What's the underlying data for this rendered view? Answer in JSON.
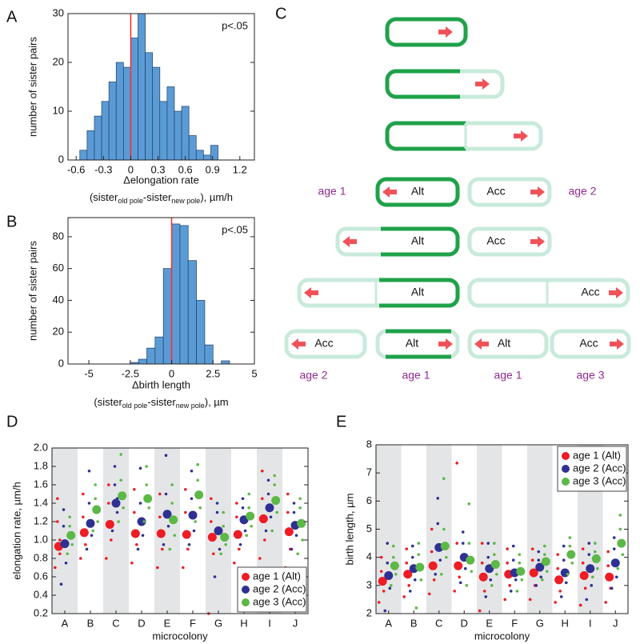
{
  "chart_data": [
    {
      "type": "histogram",
      "panel_label": "A",
      "annotation": "p<.05",
      "y_label": "number of sister pairs",
      "x_label": "Δelongation rate",
      "x_label_2": [
        "(sister",
        "old pole",
        "-sister",
        "new pole",
        "), µm/h"
      ],
      "bins": [
        -0.56,
        -0.48,
        -0.4,
        -0.32,
        -0.24,
        -0.16,
        -0.08,
        0,
        0.08,
        0.16,
        0.24,
        0.32,
        0.4,
        0.48,
        0.56,
        0.64,
        0.72,
        0.8,
        0.88,
        0.96
      ],
      "counts": [
        2,
        6,
        9,
        12,
        16,
        20,
        19,
        25,
        30,
        22,
        19,
        12,
        15,
        10,
        11,
        5,
        2,
        1,
        3
      ],
      "color": "#5b9bd5",
      "vline": 0,
      "vline_color": "#ff2a2a",
      "xlim": [
        -0.69,
        1.36
      ],
      "xticks": [
        -0.6,
        -0.3,
        0,
        0.3,
        0.6,
        0.9,
        1.2
      ],
      "ylim": [
        0,
        30
      ],
      "yticks": [
        0,
        10,
        20,
        30
      ]
    },
    {
      "type": "histogram",
      "panel_label": "B",
      "annotation": "p<.05",
      "y_label": "number of sister pairs",
      "x_label": "Δbirth length",
      "x_label_2": [
        "(sister",
        "old pole",
        "-sister",
        "new pole",
        "), µm"
      ],
      "bins": [
        -2.5,
        -2,
        -1.5,
        -1,
        -0.5,
        0,
        0.5,
        1,
        1.5,
        2,
        2.5,
        3,
        3.5
      ],
      "counts": [
        1,
        3,
        10,
        17,
        60,
        88,
        87,
        65,
        40,
        12,
        0,
        2
      ],
      "color": "#5b9bd5",
      "vline": 0,
      "vline_color": "#ff2a2a",
      "xlim": [
        -6.26,
        5
      ],
      "xticks": [
        -5,
        -2.5,
        0,
        2.5,
        5
      ],
      "ylim": [
        0,
        92
      ],
      "yticks": [
        0,
        20,
        40,
        60,
        80
      ]
    },
    {
      "type": "strip",
      "panel_label": "D",
      "y_label": "elongation rate, µm/h",
      "x_label": "microcolony",
      "categories": [
        "A",
        "B",
        "C",
        "D",
        "E",
        "F",
        "G",
        "H",
        "I",
        "J"
      ],
      "legend": "lower right",
      "shade_alternate": true,
      "ylim": [
        0.2,
        2.0
      ],
      "yticks": [
        0.2,
        0.4,
        0.6,
        0.8,
        {
          "value": 1,
          "label": "1.0"
        },
        1.2,
        1.4,
        1.6,
        1.8,
        {
          "value": 2,
          "label": "2.0"
        }
      ],
      "series": [
        {
          "name": "age 1 (Alt)",
          "color": "#ee1c24",
          "values": [
            0.93,
            1.08,
            1.17,
            1.07,
            1.07,
            1.06,
            1.03,
            1.06,
            1.23,
            1.09
          ],
          "points": [
            [
              0.7,
              0.85,
              1.0,
              1.2,
              1.45
            ],
            [
              0.8,
              0.95,
              1.1,
              1.25,
              1.5
            ],
            [
              0.8,
              1.0,
              1.2,
              1.4,
              1.6
            ],
            [
              0.75,
              0.95,
              1.1,
              1.3,
              1.55
            ],
            [
              0.7,
              0.9,
              1.05,
              1.25,
              1.5
            ],
            [
              0.7,
              0.9,
              1.05,
              1.3,
              1.55
            ],
            [
              0.2,
              0.85,
              1.05,
              1.2,
              1.45
            ],
            [
              0.75,
              0.9,
              1.05,
              1.25,
              1.4
            ],
            [
              0.8,
              1.0,
              1.2,
              1.45,
              1.75
            ],
            [
              0.7,
              0.9,
              1.1,
              1.3,
              1.5
            ]
          ]
        },
        {
          "name": "age 2 (Acc)",
          "color": "#2e3192",
          "values": [
            0.96,
            1.18,
            1.4,
            1.2,
            1.28,
            1.27,
            1.1,
            1.22,
            1.35,
            1.16
          ],
          "points": [
            [
              0.52,
              0.75,
              0.95,
              1.15,
              1.33
            ],
            [
              0.9,
              1.05,
              1.2,
              1.4,
              1.75
            ],
            [
              1.1,
              1.3,
              1.45,
              1.6,
              1.8
            ],
            [
              0.9,
              1.05,
              1.2,
              1.4,
              1.78
            ],
            [
              0.95,
              1.15,
              1.3,
              1.5,
              1.92
            ],
            [
              0.95,
              1.1,
              1.25,
              1.45,
              1.75
            ],
            [
              0.6,
              0.9,
              1.1,
              1.3,
              1.4
            ],
            [
              0.95,
              1.1,
              1.2,
              1.35,
              1.45
            ],
            [
              1.1,
              1.25,
              1.35,
              1.5,
              1.65
            ],
            [
              0.9,
              1.05,
              1.15,
              1.3,
              1.4
            ]
          ]
        },
        {
          "name": "age 3 (Acc)",
          "color": "#5cb847",
          "values": [
            1.05,
            1.33,
            1.48,
            1.45,
            1.22,
            1.49,
            1.03,
            1.26,
            1.43,
            1.18
          ],
          "points": [
            [
              0.85,
              0.95,
              1.05,
              1.15,
              1.25
            ],
            [
              1.1,
              1.2,
              1.35,
              1.45,
              1.6
            ],
            [
              1.2,
              1.35,
              1.5,
              1.65,
              1.93
            ],
            [
              1.2,
              1.35,
              1.45,
              1.6,
              1.8
            ],
            [
              0.9,
              1.05,
              1.2,
              1.4,
              1.6
            ],
            [
              1.2,
              1.35,
              1.5,
              1.65,
              1.82
            ],
            [
              0.85,
              0.95,
              1.05,
              1.15,
              1.3
            ],
            [
              1.05,
              1.15,
              1.25,
              1.35,
              1.5
            ],
            [
              1.1,
              1.3,
              1.45,
              1.6,
              1.7
            ],
            [
              0.85,
              1.0,
              1.2,
              1.35,
              1.45
            ]
          ]
        }
      ]
    },
    {
      "type": "strip",
      "panel_label": "E",
      "y_label": "birth length, µm",
      "x_label": "microcolony",
      "categories": [
        "A",
        "B",
        "C",
        "D",
        "E",
        "F",
        "G",
        "H",
        "I",
        "J"
      ],
      "legend": "upper right",
      "shade_alternate": true,
      "ylim": [
        2,
        8
      ],
      "yticks": [
        2,
        3,
        4,
        5,
        6,
        7,
        8
      ],
      "series": [
        {
          "name": "age 1 (Alt)",
          "color": "#ee1c24",
          "values": [
            3.15,
            3.4,
            3.7,
            3.7,
            3.3,
            3.4,
            3.45,
            3.2,
            3.35,
            3.3
          ],
          "points": [
            [
              2.4,
              2.8,
              3.1,
              3.5,
              4.0
            ],
            [
              2.6,
              3.0,
              3.4,
              3.8,
              4.3
            ],
            [
              2.7,
              3.2,
              3.7,
              4.2,
              5.0
            ],
            [
              2.8,
              3.3,
              3.7,
              4.5,
              7.35
            ],
            [
              2.1,
              2.8,
              3.3,
              3.8,
              4.5
            ],
            [
              2.5,
              3.0,
              3.4,
              3.8,
              4.3
            ],
            [
              2.5,
              3.0,
              3.4,
              3.9,
              4.3
            ],
            [
              2.4,
              2.8,
              3.2,
              3.6,
              4.1
            ],
            [
              2.3,
              2.9,
              3.3,
              3.8,
              4.3
            ],
            [
              2.4,
              2.9,
              3.3,
              3.7,
              4.2
            ]
          ]
        },
        {
          "name": "age 2 (Acc)",
          "color": "#2e3192",
          "values": [
            3.35,
            3.6,
            4.35,
            4.0,
            3.6,
            3.45,
            3.65,
            3.45,
            3.6,
            3.8
          ],
          "points": [
            [
              2.1,
              2.9,
              3.3,
              3.8,
              4.5
            ],
            [
              2.8,
              3.2,
              3.6,
              4.0,
              4.4
            ],
            [
              3.4,
              3.9,
              4.4,
              5.2,
              6.1
            ],
            [
              3.1,
              3.6,
              4.0,
              4.5,
              4.9
            ],
            [
              2.6,
              3.2,
              3.6,
              4.0,
              4.5
            ],
            [
              2.8,
              3.2,
              3.5,
              3.9,
              4.4
            ],
            [
              3.0,
              3.3,
              3.6,
              3.9,
              4.2
            ],
            [
              2.6,
              3.1,
              3.5,
              3.9,
              4.4
            ],
            [
              2.5,
              3.0,
              3.6,
              4.1,
              4.5
            ],
            [
              2.9,
              3.3,
              3.8,
              4.3,
              4.7
            ]
          ]
        },
        {
          "name": "age 3 (Acc)",
          "color": "#5cb847",
          "values": [
            3.7,
            3.65,
            4.4,
            3.9,
            3.75,
            3.5,
            3.85,
            4.1,
            3.95,
            4.5
          ],
          "points": [
            [
              3.0,
              3.4,
              3.7,
              4.0,
              4.4
            ],
            [
              2.2,
              3.2,
              3.7,
              4.1,
              4.5
            ],
            [
              3.4,
              4.0,
              4.4,
              5.0,
              6.8
            ],
            [
              3.0,
              3.5,
              3.9,
              4.5,
              5.9
            ],
            [
              3.0,
              3.4,
              3.7,
              4.1,
              4.5
            ],
            [
              2.8,
              3.2,
              3.5,
              3.8,
              4.1
            ],
            [
              3.2,
              3.5,
              3.8,
              4.1,
              4.4
            ],
            [
              3.4,
              3.8,
              4.1,
              4.4,
              4.7
            ],
            [
              3.3,
              3.6,
              3.9,
              4.2,
              4.5
            ],
            [
              3.6,
              4.1,
              4.5,
              5.0,
              5.5
            ]
          ]
        }
      ]
    }
  ],
  "diagram": {
    "panel_label": "C",
    "rows": [
      {
        "cells": [
          "Alt",
          "Acc"
        ],
        "ages": [
          "age 1",
          "age 2"
        ]
      },
      {
        "cells": [
          "Alt",
          "Acc"
        ]
      },
      {
        "cells": [
          "Alt",
          "Acc"
        ]
      },
      {
        "cells": [
          "Acc",
          "Alt",
          "Alt",
          "Acc"
        ],
        "ages": [
          "age 2",
          "age 1",
          "age 1",
          "age 3"
        ]
      }
    ]
  }
}
